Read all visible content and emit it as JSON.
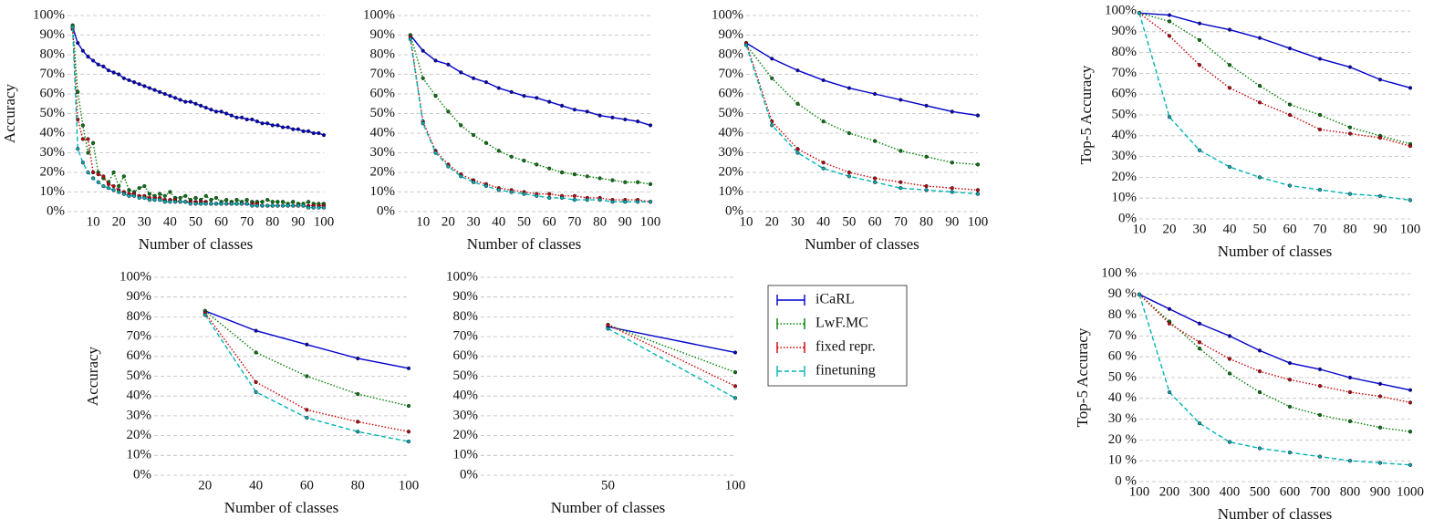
{
  "chart_data": [
    {
      "type": "line",
      "xlabel": "Number of classes",
      "ylabel": "Accuracy",
      "grid": true,
      "xlim": [
        0,
        100
      ],
      "xticks": [
        10,
        20,
        30,
        40,
        50,
        60,
        70,
        80,
        90,
        100
      ],
      "ylim": [
        0,
        100
      ],
      "yticks": [
        {
          "value": 0,
          "label": "0%"
        },
        {
          "value": 10,
          "label": "10%"
        },
        {
          "value": 20,
          "label": "20%"
        },
        {
          "value": 30,
          "label": "30%"
        },
        {
          "value": 40,
          "label": "40%"
        },
        {
          "value": 50,
          "label": "50%"
        },
        {
          "value": 60,
          "label": "60%"
        },
        {
          "value": 70,
          "label": "70%"
        },
        {
          "value": 80,
          "label": "80%"
        },
        {
          "value": 90,
          "label": "90%"
        },
        {
          "value": 100,
          "label": "100%"
        }
      ],
      "x": [
        2,
        4,
        6,
        8,
        10,
        12,
        14,
        16,
        18,
        20,
        22,
        24,
        26,
        28,
        30,
        32,
        34,
        36,
        38,
        40,
        42,
        44,
        46,
        48,
        50,
        52,
        54,
        56,
        58,
        60,
        62,
        64,
        66,
        68,
        70,
        72,
        74,
        76,
        78,
        80,
        82,
        84,
        86,
        88,
        90,
        92,
        94,
        96,
        98,
        100
      ],
      "series": [
        {
          "color": "#0000cc",
          "style": "solid",
          "values": [
            94,
            86,
            82,
            79,
            77,
            75,
            74,
            72,
            71,
            70,
            68,
            67,
            66,
            65,
            64,
            63,
            62,
            61,
            60,
            59,
            58,
            57,
            56,
            56,
            55,
            54,
            53,
            52,
            51,
            51,
            50,
            49,
            48,
            48,
            47,
            47,
            46,
            45,
            45,
            44,
            44,
            43,
            43,
            42,
            42,
            41,
            41,
            40,
            40,
            39
          ]
        },
        {
          "color": "#007f00",
          "style": "dotted",
          "values": [
            95,
            61,
            44,
            30,
            35,
            20,
            17,
            15,
            20,
            13,
            18,
            11,
            10,
            12,
            13,
            9,
            8,
            9,
            8,
            10,
            7,
            7,
            8,
            6,
            7,
            6,
            8,
            6,
            7,
            5,
            6,
            5,
            6,
            5,
            6,
            5,
            5,
            5,
            6,
            5,
            5,
            5,
            4,
            5,
            4,
            4,
            5,
            4,
            4,
            4
          ]
        },
        {
          "color": "#cc0000",
          "style": "dotted",
          "values": [
            93,
            47,
            37,
            37,
            20,
            19,
            18,
            14,
            13,
            11,
            10,
            9,
            9,
            8,
            8,
            7,
            7,
            7,
            6,
            6,
            6,
            5,
            5,
            5,
            5,
            5,
            5,
            4,
            4,
            4,
            4,
            4,
            4,
            4,
            4,
            4,
            4,
            3,
            3,
            3,
            3,
            3,
            3,
            3,
            3,
            3,
            3,
            3,
            3,
            3
          ]
        },
        {
          "color": "#00b3b3",
          "style": "dashed",
          "values": [
            94,
            32,
            25,
            20,
            17,
            15,
            13,
            12,
            11,
            10,
            9,
            8,
            8,
            7,
            7,
            6,
            6,
            6,
            5,
            5,
            5,
            5,
            5,
            4,
            4,
            4,
            4,
            4,
            4,
            4,
            4,
            4,
            4,
            4,
            4,
            3,
            3,
            3,
            3,
            3,
            3,
            3,
            3,
            3,
            3,
            3,
            2,
            2,
            2,
            2
          ]
        }
      ]
    },
    {
      "type": "line",
      "xlabel": "Number of classes",
      "grid": true,
      "xlim": [
        0,
        100
      ],
      "xticks": [
        10,
        20,
        30,
        40,
        50,
        60,
        70,
        80,
        90,
        100
      ],
      "ylim": [
        0,
        100
      ],
      "yticks": [
        {
          "value": 0,
          "label": "0%"
        },
        {
          "value": 10,
          "label": "10%"
        },
        {
          "value": 20,
          "label": "20%"
        },
        {
          "value": 30,
          "label": "30%"
        },
        {
          "value": 40,
          "label": "40%"
        },
        {
          "value": 50,
          "label": "50%"
        },
        {
          "value": 60,
          "label": "60%"
        },
        {
          "value": 70,
          "label": "70%"
        },
        {
          "value": 80,
          "label": "80%"
        },
        {
          "value": 90,
          "label": "90%"
        },
        {
          "value": 100,
          "label": "100%"
        }
      ],
      "x": [
        5,
        10,
        15,
        20,
        25,
        30,
        35,
        40,
        45,
        50,
        55,
        60,
        65,
        70,
        75,
        80,
        85,
        90,
        95,
        100
      ],
      "series": [
        {
          "color": "#0000cc",
          "style": "solid",
          "values": [
            90,
            82,
            77,
            75,
            71,
            68,
            66,
            63,
            61,
            59,
            58,
            56,
            54,
            52,
            51,
            49,
            48,
            47,
            46,
            44
          ]
        },
        {
          "color": "#007f00",
          "style": "dotted",
          "values": [
            90,
            68,
            59,
            51,
            44,
            39,
            35,
            31,
            28,
            26,
            24,
            22,
            20,
            19,
            18,
            17,
            16,
            15,
            15,
            14
          ]
        },
        {
          "color": "#cc0000",
          "style": "dotted",
          "values": [
            89,
            46,
            31,
            24,
            19,
            16,
            14,
            12,
            11,
            10,
            9,
            9,
            8,
            8,
            7,
            7,
            6,
            6,
            6,
            5
          ]
        },
        {
          "color": "#00b3b3",
          "style": "dashed",
          "values": [
            88,
            45,
            30,
            23,
            18,
            15,
            13,
            11,
            10,
            9,
            8,
            7,
            7,
            6,
            6,
            6,
            5,
            5,
            5,
            5
          ]
        }
      ]
    },
    {
      "type": "line",
      "xlabel": "Number of classes",
      "grid": true,
      "xlim": [
        10,
        100
      ],
      "xticks": [
        10,
        20,
        30,
        40,
        50,
        60,
        70,
        80,
        90,
        100
      ],
      "ylim": [
        0,
        100
      ],
      "yticks": [
        {
          "value": 0,
          "label": "0%"
        },
        {
          "value": 10,
          "label": "10%"
        },
        {
          "value": 20,
          "label": "20%"
        },
        {
          "value": 30,
          "label": "30%"
        },
        {
          "value": 40,
          "label": "40%"
        },
        {
          "value": 50,
          "label": "50%"
        },
        {
          "value": 60,
          "label": "60%"
        },
        {
          "value": 70,
          "label": "70%"
        },
        {
          "value": 80,
          "label": "80%"
        },
        {
          "value": 90,
          "label": "90%"
        },
        {
          "value": 100,
          "label": "100%"
        }
      ],
      "x": [
        10,
        20,
        30,
        40,
        50,
        60,
        70,
        80,
        90,
        100
      ],
      "series": [
        {
          "color": "#0000cc",
          "style": "solid",
          "values": [
            86,
            78,
            72,
            67,
            63,
            60,
            57,
            54,
            51,
            49
          ]
        },
        {
          "color": "#007f00",
          "style": "dotted",
          "values": [
            85,
            68,
            55,
            46,
            40,
            36,
            31,
            28,
            25,
            24
          ]
        },
        {
          "color": "#cc0000",
          "style": "dotted",
          "values": [
            86,
            46,
            32,
            25,
            20,
            17,
            15,
            13,
            12,
            11
          ]
        },
        {
          "color": "#00b3b3",
          "style": "dashed",
          "values": [
            85,
            44,
            30,
            22,
            18,
            15,
            12,
            11,
            10,
            9
          ]
        }
      ]
    },
    {
      "type": "line",
      "xlabel": "Number of classes",
      "ylabel": "Top-5 Accuracy",
      "grid": true,
      "xlim": [
        10,
        100
      ],
      "xticks": [
        10,
        20,
        30,
        40,
        50,
        60,
        70,
        80,
        90,
        100
      ],
      "ylim": [
        0,
        100
      ],
      "yticks": [
        {
          "value": 0,
          "label": "0%"
        },
        {
          "value": 10,
          "label": "10%"
        },
        {
          "value": 20,
          "label": "20%"
        },
        {
          "value": 30,
          "label": "30%"
        },
        {
          "value": 40,
          "label": "40%"
        },
        {
          "value": 50,
          "label": "50%"
        },
        {
          "value": 60,
          "label": "60%"
        },
        {
          "value": 70,
          "label": "70%"
        },
        {
          "value": 80,
          "label": "80%"
        },
        {
          "value": 90,
          "label": "90%"
        },
        {
          "value": 100,
          "label": "100%"
        }
      ],
      "x": [
        10,
        20,
        30,
        40,
        50,
        60,
        70,
        80,
        90,
        100
      ],
      "series": [
        {
          "color": "#0000cc",
          "style": "solid",
          "values": [
            99,
            98,
            94,
            91,
            87,
            82,
            77,
            73,
            67,
            63
          ]
        },
        {
          "color": "#007f00",
          "style": "dotted",
          "values": [
            99,
            95,
            86,
            74,
            64,
            55,
            50,
            44,
            40,
            36
          ]
        },
        {
          "color": "#cc0000",
          "style": "dotted",
          "values": [
            99,
            88,
            74,
            63,
            56,
            50,
            43,
            41,
            39,
            35
          ]
        },
        {
          "color": "#00b3b3",
          "style": "dashed",
          "values": [
            99,
            49,
            33,
            25,
            20,
            16,
            14,
            12,
            11,
            9
          ]
        }
      ]
    },
    {
      "type": "line",
      "xlabel": "Number of classes",
      "ylabel": "Accuracy",
      "grid": true,
      "xlim": [
        0,
        100
      ],
      "xticks": [
        20,
        40,
        60,
        80,
        100
      ],
      "ylim": [
        0,
        100
      ],
      "yticks": [
        {
          "value": 0,
          "label": "0%"
        },
        {
          "value": 10,
          "label": "10%"
        },
        {
          "value": 20,
          "label": "20%"
        },
        {
          "value": 30,
          "label": "30%"
        },
        {
          "value": 40,
          "label": "40%"
        },
        {
          "value": 50,
          "label": "50%"
        },
        {
          "value": 60,
          "label": "60%"
        },
        {
          "value": 70,
          "label": "70%"
        },
        {
          "value": 80,
          "label": "80%"
        },
        {
          "value": 90,
          "label": "90%"
        },
        {
          "value": 100,
          "label": "100%"
        }
      ],
      "x": [
        20,
        40,
        60,
        80,
        100
      ],
      "series": [
        {
          "color": "#0000cc",
          "style": "solid",
          "values": [
            83,
            73,
            66,
            59,
            54
          ]
        },
        {
          "color": "#007f00",
          "style": "dotted",
          "values": [
            83,
            62,
            50,
            41,
            35
          ]
        },
        {
          "color": "#cc0000",
          "style": "dotted",
          "values": [
            82,
            47,
            33,
            27,
            22
          ]
        },
        {
          "color": "#00b3b3",
          "style": "dashed",
          "values": [
            81,
            42,
            29,
            22,
            17
          ]
        }
      ]
    },
    {
      "type": "line",
      "xlabel": "Number of classes",
      "grid": true,
      "legend": "right",
      "xlim": [
        0,
        100
      ],
      "xticks": [
        50,
        100
      ],
      "ylim": [
        0,
        100
      ],
      "yticks": [
        {
          "value": 0,
          "label": "0%"
        },
        {
          "value": 10,
          "label": "10%"
        },
        {
          "value": 20,
          "label": "20%"
        },
        {
          "value": 30,
          "label": "30%"
        },
        {
          "value": 40,
          "label": "40%"
        },
        {
          "value": 50,
          "label": "50%"
        },
        {
          "value": 60,
          "label": "60%"
        },
        {
          "value": 70,
          "label": "70%"
        },
        {
          "value": 80,
          "label": "80%"
        },
        {
          "value": 90,
          "label": "90%"
        },
        {
          "value": 100,
          "label": "100%"
        }
      ],
      "x": [
        50,
        100
      ],
      "series": [
        {
          "name": "iCaRL",
          "color": "#0000cc",
          "style": "solid",
          "values": [
            75,
            62
          ]
        },
        {
          "name": "LwF.MC",
          "color": "#007f00",
          "style": "dotted",
          "values": [
            76,
            52
          ]
        },
        {
          "name": "fixed repr.",
          "color": "#cc0000",
          "style": "dotted",
          "values": [
            76,
            45
          ]
        },
        {
          "name": "finetuning",
          "color": "#00b3b3",
          "style": "dashed",
          "values": [
            74,
            39
          ]
        }
      ]
    },
    {
      "type": "line",
      "xlabel": "Number of classes",
      "ylabel": "Top-5 Accuracy",
      "grid": true,
      "xlim": [
        100,
        1000
      ],
      "xticks": [
        100,
        200,
        300,
        400,
        500,
        600,
        700,
        800,
        900,
        1000
      ],
      "ylim": [
        0,
        100
      ],
      "yticks": [
        {
          "value": 0,
          "label": "0 %"
        },
        {
          "value": 10,
          "label": "10 %"
        },
        {
          "value": 20,
          "label": "20 %"
        },
        {
          "value": 30,
          "label": "30 %"
        },
        {
          "value": 40,
          "label": "40 %"
        },
        {
          "value": 50,
          "label": "50 %"
        },
        {
          "value": 60,
          "label": "60 %"
        },
        {
          "value": 70,
          "label": "70 %"
        },
        {
          "value": 80,
          "label": "80 %"
        },
        {
          "value": 90,
          "label": "90 %"
        },
        {
          "value": 100,
          "label": "100 %"
        }
      ],
      "x": [
        100,
        200,
        300,
        400,
        500,
        600,
        700,
        800,
        900,
        1000
      ],
      "series": [
        {
          "color": "#0000cc",
          "style": "solid",
          "values": [
            90,
            83,
            76,
            70,
            63,
            57,
            54,
            50,
            47,
            44
          ]
        },
        {
          "color": "#007f00",
          "style": "dotted",
          "values": [
            90,
            77,
            64,
            52,
            43,
            36,
            32,
            29,
            26,
            24
          ]
        },
        {
          "color": "#cc0000",
          "style": "dotted",
          "values": [
            90,
            76,
            67,
            59,
            53,
            49,
            46,
            43,
            41,
            38
          ]
        },
        {
          "color": "#00b3b3",
          "style": "dashed",
          "values": [
            90,
            43,
            28,
            19,
            16,
            14,
            12,
            10,
            9,
            8
          ]
        }
      ]
    }
  ]
}
